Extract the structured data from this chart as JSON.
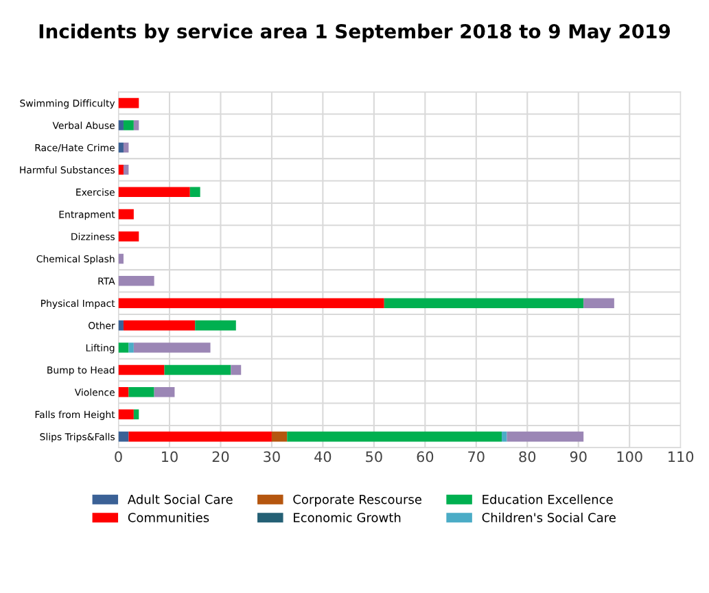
{
  "chart_data": {
    "type": "bar",
    "orientation": "horizontal",
    "stacked": true,
    "title": "Incidents by service area 1 September 2018 to 9 May 2019",
    "categories": [
      "Swimming Difficulty",
      "Verbal Abuse",
      "Race/Hate Crime",
      "Harmful Substances",
      "Exercise",
      "Entrapment",
      "Dizziness",
      "Chemical Splash",
      "RTA",
      "Physical Impact",
      "Other",
      "Lifting",
      "Bump to Head",
      "Violence",
      "Falls from Height",
      "Slips Trips&Falls"
    ],
    "series": [
      {
        "name": "Adult Social Care",
        "color": "#3b6196",
        "values": [
          0,
          1,
          1,
          0,
          0,
          0,
          0,
          0,
          0,
          0,
          1,
          0,
          0,
          0,
          0,
          2
        ]
      },
      {
        "name": "Communities",
        "color": "#ff0000",
        "values": [
          4,
          0,
          0,
          1,
          14,
          3,
          4,
          0,
          0,
          52,
          14,
          0,
          9,
          2,
          3,
          28
        ]
      },
      {
        "name": "Corporate Rescourse",
        "color": "#b5560f",
        "values": [
          0,
          0,
          0,
          0,
          0,
          0,
          0,
          0,
          0,
          0,
          0,
          0,
          0,
          0,
          0,
          3
        ]
      },
      {
        "name": "Economic Growth",
        "color": "#246075",
        "values": [
          0,
          0,
          0,
          0,
          0,
          0,
          0,
          0,
          0,
          0,
          0,
          0,
          0,
          0,
          0,
          0
        ]
      },
      {
        "name": "Education Excellence",
        "color": "#00b050",
        "values": [
          0,
          2,
          0,
          0,
          2,
          0,
          0,
          0,
          0,
          39,
          8,
          2,
          13,
          5,
          1,
          42
        ]
      },
      {
        "name": "Children's Social Care",
        "color": "#4bacc6",
        "values": [
          0,
          0,
          0,
          0,
          0,
          0,
          0,
          0,
          0,
          0,
          0,
          1,
          0,
          0,
          0,
          1
        ]
      },
      {
        "color": "#9b86b5",
        "values": [
          0,
          1,
          1,
          1,
          0,
          0,
          0,
          1,
          7,
          6,
          0,
          15,
          2,
          4,
          0,
          15
        ]
      }
    ],
    "xlim": [
      0,
      110
    ],
    "xticks": [
      0,
      10,
      20,
      30,
      40,
      50,
      60,
      70,
      80,
      90,
      100,
      110
    ],
    "grid": true,
    "legend": "bottom"
  }
}
